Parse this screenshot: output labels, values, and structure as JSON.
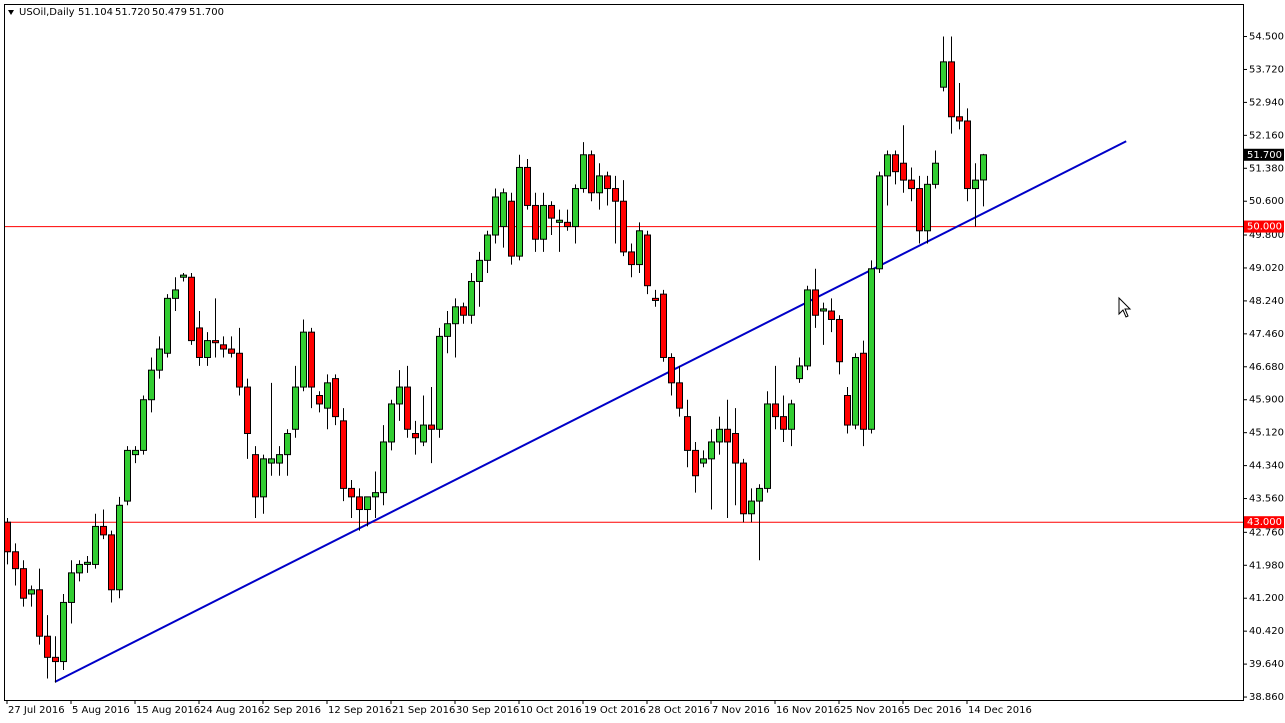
{
  "chart_data": {
    "type": "candlestick",
    "title": "USOil,Daily",
    "header_values": [
      51.104,
      {
        "value": 51.72,
        "label": "51.720"
      },
      50.479,
      {
        "value": 51.7,
        "label": "51.700"
      }
    ],
    "categories": [
      "27 Jul 2016",
      null,
      null,
      null,
      null,
      null,
      null,
      null,
      "5 Aug 2016",
      null,
      null,
      null,
      null,
      null,
      null,
      null,
      "15 Aug 2016",
      null,
      null,
      null,
      null,
      null,
      null,
      null,
      "24 Aug 2016",
      null,
      null,
      null,
      null,
      null,
      null,
      null,
      "2 Sep 2016",
      null,
      null,
      null,
      null,
      null,
      null,
      null,
      "12 Sep 2016",
      null,
      null,
      null,
      null,
      null,
      null,
      null,
      "21 Sep 2016",
      null,
      null,
      null,
      null,
      null,
      null,
      null,
      "30 Sep 2016",
      null,
      null,
      null,
      null,
      null,
      null,
      null,
      "10 Oct 2016",
      null,
      null,
      null,
      null,
      null,
      null,
      null,
      "19 Oct 2016",
      null,
      null,
      null,
      null,
      null,
      null,
      null,
      "28 Oct 2016",
      null,
      null,
      null,
      null,
      null,
      null,
      null,
      "7 Nov 2016",
      null,
      null,
      null,
      null,
      null,
      null,
      null,
      "16 Nov 2016",
      null,
      null,
      null,
      null,
      null,
      null,
      null,
      "25 Nov 2016",
      null,
      null,
      null,
      null,
      null,
      null,
      null,
      "5 Dec 2016",
      null,
      null,
      null,
      null,
      null,
      null,
      null,
      "14 Dec 2016",
      null,
      null
    ],
    "open": [
      43.0,
      42.3,
      41.9,
      41.3,
      41.4,
      40.3,
      39.8,
      39.7,
      41.1,
      41.8,
      42.0,
      42.0,
      42.9,
      42.7,
      41.4,
      43.5,
      44.6,
      44.7,
      45.9,
      46.6,
      47.0,
      48.3,
      48.8,
      48.8,
      47.6,
      46.9,
      47.3,
      47.2,
      47.1,
      47.0,
      46.2,
      44.6,
      43.6,
      44.4,
      44.4,
      44.6,
      45.2,
      46.2,
      47.5,
      46.0,
      45.7,
      46.4,
      45.4,
      43.8,
      43.6,
      43.3,
      43.6,
      43.7,
      44.9,
      45.8,
      46.2,
      45.1,
      44.9,
      45.3,
      45.2,
      47.4,
      47.7,
      48.1,
      47.9,
      48.7,
      49.2,
      49.8,
      50.0,
      50.6,
      49.3,
      51.4,
      50.5,
      49.7,
      50.5,
      50.1,
      50.1,
      50.0,
      50.9,
      51.7,
      50.8,
      51.2,
      50.9,
      50.6,
      49.4,
      49.1,
      49.8,
      48.3,
      48.4,
      46.9,
      46.3,
      45.5,
      44.7,
      44.4,
      44.5,
      44.9,
      45.2,
      45.1,
      44.4,
      43.2,
      43.5,
      43.8,
      45.8,
      45.5,
      45.2,
      46.4,
      46.7,
      48.5,
      48.0,
      48.0,
      47.8,
      46.0,
      45.3,
      47.0,
      45.2,
      49.0,
      51.2,
      51.7,
      51.5,
      51.1,
      50.9,
      49.9,
      51.0,
      53.3,
      53.9,
      52.6,
      52.5,
      50.9,
      51.104
    ],
    "high": [
      43.1,
      42.5,
      42.1,
      41.5,
      41.9,
      40.8,
      40.3,
      41.3,
      42.1,
      42.1,
      42.2,
      43.2,
      43.3,
      42.8,
      43.6,
      44.8,
      44.8,
      46.0,
      46.9,
      47.4,
      48.4,
      48.8,
      48.9,
      48.9,
      48.0,
      47.5,
      48.3,
      47.4,
      47.4,
      47.6,
      46.4,
      44.8,
      44.6,
      46.3,
      44.8,
      45.2,
      46.7,
      47.8,
      47.6,
      46.1,
      46.5,
      46.5,
      45.7,
      44.0,
      43.8,
      43.6,
      44.2,
      45.3,
      45.9,
      46.6,
      46.7,
      45.4,
      46.0,
      46.2,
      47.6,
      48.0,
      48.3,
      48.2,
      48.9,
      49.4,
      49.9,
      50.9,
      50.9,
      50.8,
      51.7,
      51.6,
      50.8,
      50.8,
      50.6,
      50.4,
      50.4,
      51.0,
      52.0,
      51.8,
      51.5,
      51.3,
      51.2,
      51.1,
      49.6,
      50.1,
      49.9,
      48.5,
      48.5,
      47.0,
      46.7,
      45.9,
      44.9,
      44.7,
      45.2,
      45.5,
      45.9,
      45.7,
      44.5,
      43.8,
      43.9,
      46.1,
      46.7,
      46.0,
      45.9,
      46.9,
      48.6,
      49.0,
      48.2,
      48.3,
      47.9,
      46.2,
      47.0,
      47.3,
      49.2,
      51.3,
      51.8,
      51.8,
      52.4,
      51.4,
      51.2,
      51.2,
      51.8,
      54.5,
      54.5,
      53.4,
      52.8,
      51.5,
      51.72
    ],
    "low": [
      42.0,
      41.5,
      41.0,
      41.0,
      40.1,
      39.3,
      39.2,
      39.5,
      40.6,
      41.6,
      41.8,
      41.9,
      42.6,
      41.1,
      41.2,
      43.4,
      44.4,
      44.6,
      45.6,
      46.4,
      46.9,
      48.0,
      48.7,
      47.2,
      46.7,
      46.7,
      46.9,
      46.9,
      46.9,
      46.0,
      44.5,
      43.1,
      43.2,
      44.1,
      44.1,
      44.1,
      45.0,
      46.1,
      45.7,
      45.6,
      45.2,
      45.3,
      43.5,
      43.1,
      42.8,
      42.9,
      43.1,
      43.4,
      44.7,
      45.4,
      45.0,
      44.6,
      44.8,
      44.4,
      45.0,
      47.0,
      46.9,
      47.7,
      47.7,
      48.1,
      48.9,
      49.6,
      49.5,
      49.1,
      49.2,
      50.4,
      49.4,
      49.4,
      49.8,
      49.4,
      49.9,
      49.6,
      50.8,
      50.6,
      50.4,
      50.5,
      49.6,
      49.3,
      48.8,
      48.9,
      48.4,
      48.1,
      46.8,
      46.0,
      45.5,
      44.3,
      43.7,
      44.3,
      43.3,
      44.6,
      43.1,
      43.4,
      43.0,
      43.0,
      42.1,
      43.7,
      45.2,
      44.9,
      44.8,
      46.3,
      46.6,
      47.6,
      47.2,
      47.5,
      46.5,
      45.1,
      45.2,
      44.8,
      45.1,
      48.9,
      50.5,
      51.0,
      50.8,
      50.6,
      49.6,
      49.6,
      50.9,
      53.2,
      52.2,
      52.3,
      50.6,
      50.0,
      50.479
    ],
    "close": [
      42.3,
      41.9,
      41.2,
      41.4,
      40.3,
      39.8,
      39.7,
      41.1,
      41.8,
      42.0,
      42.05,
      42.9,
      42.7,
      41.4,
      43.4,
      44.7,
      44.7,
      45.9,
      46.6,
      47.1,
      48.3,
      48.5,
      48.85,
      47.3,
      46.9,
      47.3,
      47.25,
      47.1,
      47.0,
      46.2,
      45.1,
      43.6,
      44.5,
      44.5,
      44.6,
      45.1,
      46.2,
      47.5,
      46.2,
      45.8,
      46.3,
      45.5,
      43.8,
      43.6,
      43.3,
      43.6,
      43.7,
      44.9,
      45.8,
      46.2,
      45.2,
      45.0,
      45.3,
      45.2,
      47.4,
      47.7,
      48.1,
      47.9,
      48.7,
      49.2,
      49.8,
      50.7,
      50.8,
      49.3,
      51.4,
      50.5,
      49.7,
      50.5,
      50.2,
      50.15,
      50.0,
      50.9,
      51.7,
      50.8,
      51.2,
      50.9,
      50.6,
      49.4,
      49.1,
      49.9,
      48.6,
      48.25,
      46.9,
      46.3,
      45.7,
      44.7,
      44.1,
      44.5,
      44.9,
      45.2,
      44.9,
      44.4,
      43.2,
      43.5,
      43.8,
      45.8,
      45.5,
      45.2,
      45.8,
      46.7,
      48.5,
      47.9,
      48.05,
      47.8,
      46.8,
      45.3,
      46.9,
      45.2,
      49.0,
      51.2,
      51.7,
      51.3,
      51.1,
      50.9,
      49.9,
      51.0,
      51.5,
      53.9,
      52.6,
      52.5,
      50.9,
      51.1,
      51.7
    ],
    "up_color": "#32cd32",
    "down_color": "#ff0000",
    "outline_color": "#000000",
    "ylim": [
      38.79,
      55.27
    ],
    "yticks": [
      {
        "value": 54.5,
        "label": "54.500"
      },
      {
        "value": 53.72,
        "label": "53.720"
      },
      {
        "value": 52.94,
        "label": "52.940"
      },
      {
        "value": 52.16,
        "label": "52.160"
      },
      {
        "value": 51.38,
        "label": "51.380"
      },
      {
        "value": 50.6,
        "label": "50.600"
      },
      {
        "value": 49.8,
        "label": "49.800"
      },
      {
        "value": 49.02,
        "label": "49.020"
      },
      {
        "value": 48.24,
        "label": "48.240"
      },
      {
        "value": 47.46,
        "label": "47.460"
      },
      {
        "value": 46.68,
        "label": "46.680"
      },
      {
        "value": 45.9,
        "label": "45.900"
      },
      {
        "value": 45.12,
        "label": "45.120"
      },
      {
        "value": 44.34,
        "label": "44.340"
      },
      {
        "value": 43.56,
        "label": "43.560"
      },
      {
        "value": 42.76,
        "label": "42.760"
      },
      {
        "value": 41.98,
        "label": "41.980"
      },
      {
        "value": 41.2,
        "label": "41.200"
      },
      {
        "value": 40.42,
        "label": "40.420"
      },
      {
        "value": 39.64,
        "label": "39.640"
      },
      {
        "value": 38.86,
        "label": "38.860"
      }
    ],
    "hlines": [
      {
        "value": 50.0,
        "label": "50.000",
        "color": "#ff0000"
      },
      {
        "value": 43.0,
        "label": "43.000",
        "color": "#ff0000"
      }
    ],
    "trendline": {
      "x": [
        6,
        139.9
      ],
      "y": [
        39.22,
        52.02
      ],
      "color": "#0000c8"
    },
    "last_price": {
      "value": 51.7,
      "label": "51.700"
    }
  }
}
